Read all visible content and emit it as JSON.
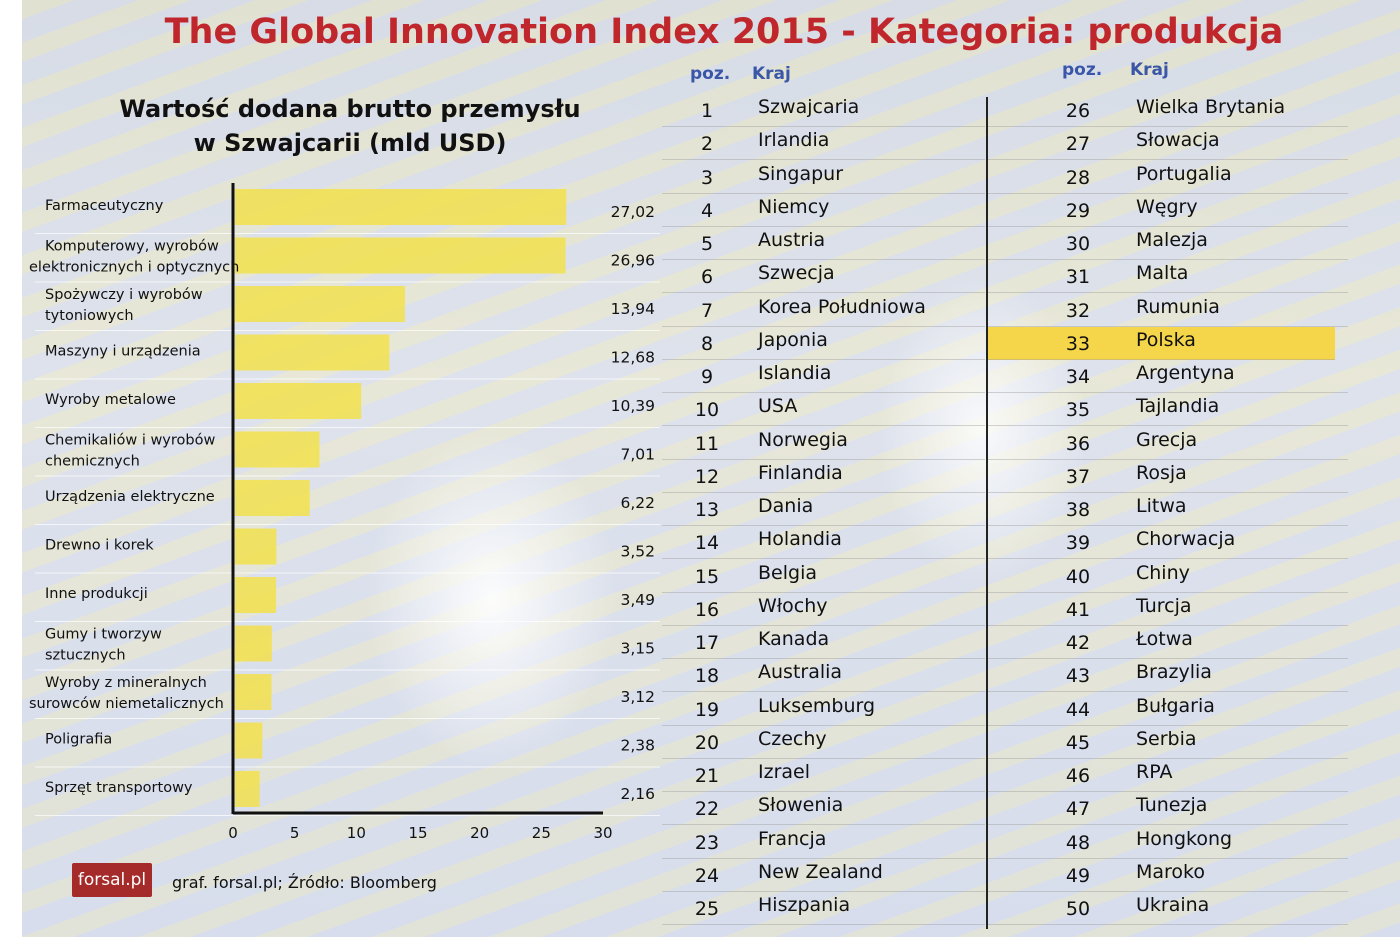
{
  "title": "The Global Innovation Index 2015 - Kategoria: produkcja",
  "footer": {
    "source": "graf. forsal.pl;  Źródło: Bloomberg",
    "logo": "forsal.pl"
  },
  "colors": {
    "title": "#c0272d",
    "bar": "#f2e04c",
    "header": "#3a56a8",
    "highlight": "#f5d54a"
  },
  "chart_data": {
    "type": "bar",
    "orientation": "horizontal",
    "title": "Wartość dodana brutto przemysłu w Szwajcarii (mld USD)",
    "title_lines": [
      "Wartość dodana brutto przemysłu",
      "w Szwajcarii (mld USD)"
    ],
    "categories": [
      [
        "Farmaceutyczny"
      ],
      [
        "Komputerowy, wyrobów",
        "elektronicznych i optycznych"
      ],
      [
        "Spożywczy i wyrobów",
        "tytoniowych"
      ],
      [
        "Maszyny i urządzenia"
      ],
      [
        "Wyroby metalowe"
      ],
      [
        "Chemikaliów i wyrobów",
        "chemicznych"
      ],
      [
        "Urządzenia elektryczne"
      ],
      [
        "Drewno i korek"
      ],
      [
        "Inne produkcji"
      ],
      [
        "Gumy i tworzyw",
        "sztucznych"
      ],
      [
        "Wyroby z mineralnych",
        "surowców niemetalicznych"
      ],
      [
        "Poligrafia"
      ],
      [
        "Sprzęt transportowy"
      ]
    ],
    "values": [
      27.02,
      26.96,
      13.94,
      12.68,
      10.39,
      7.01,
      6.22,
      3.52,
      3.49,
      3.15,
      3.12,
      2.38,
      2.16
    ],
    "value_labels": [
      "27,02",
      "26,96",
      "13,94",
      "12,68",
      "10,39",
      "7,01",
      "6,22",
      "3,52",
      "3,49",
      "3,15",
      "3,12",
      "2,38",
      "2,16"
    ],
    "xlim": [
      0,
      30
    ],
    "xticks": [
      "0",
      "5",
      "10",
      "15",
      "20",
      "25",
      "30"
    ],
    "grid": true
  },
  "table": {
    "headers": {
      "pos": "poz.",
      "country": "Kraj"
    },
    "highlight": "Polska",
    "rows": [
      [
        "1",
        "Szwajcaria"
      ],
      [
        "2",
        "Irlandia"
      ],
      [
        "3",
        "Singapur"
      ],
      [
        "4",
        "Niemcy"
      ],
      [
        "5",
        "Austria"
      ],
      [
        "6",
        "Szwecja"
      ],
      [
        "7",
        "Korea Południowa"
      ],
      [
        "8",
        "Japonia"
      ],
      [
        "9",
        "Islandia"
      ],
      [
        "10",
        "USA"
      ],
      [
        "11",
        "Norwegia"
      ],
      [
        "12",
        "Finlandia"
      ],
      [
        "13",
        "Dania"
      ],
      [
        "14",
        "Holandia"
      ],
      [
        "15",
        "Belgia"
      ],
      [
        "16",
        "Włochy"
      ],
      [
        "17",
        "Kanada"
      ],
      [
        "18",
        "Australia"
      ],
      [
        "19",
        "Luksemburg"
      ],
      [
        "20",
        "Czechy"
      ],
      [
        "21",
        "Izrael"
      ],
      [
        "22",
        "Słowenia"
      ],
      [
        "23",
        "Francja"
      ],
      [
        "24",
        "New Zealand"
      ],
      [
        "25",
        "Hiszpania"
      ],
      [
        "26",
        "Wielka Brytania"
      ],
      [
        "27",
        "Słowacja"
      ],
      [
        "28",
        "Portugalia"
      ],
      [
        "29",
        "Węgry"
      ],
      [
        "30",
        "Malezja"
      ],
      [
        "31",
        "Malta"
      ],
      [
        "32",
        "Rumunia"
      ],
      [
        "33",
        "Polska"
      ],
      [
        "34",
        "Argentyna"
      ],
      [
        "35",
        "Tajlandia"
      ],
      [
        "36",
        "Grecja"
      ],
      [
        "37",
        "Rosja"
      ],
      [
        "38",
        "Litwa"
      ],
      [
        "39",
        "Chorwacja"
      ],
      [
        "40",
        "Chiny"
      ],
      [
        "41",
        "Turcja"
      ],
      [
        "42",
        "Łotwa"
      ],
      [
        "43",
        "Brazylia"
      ],
      [
        "44",
        "Bułgaria"
      ],
      [
        "45",
        "Serbia"
      ],
      [
        "46",
        "RPA"
      ],
      [
        "47",
        "Tunezja"
      ],
      [
        "48",
        "Hongkong"
      ],
      [
        "49",
        "Maroko"
      ],
      [
        "50",
        "Ukraina"
      ]
    ]
  }
}
